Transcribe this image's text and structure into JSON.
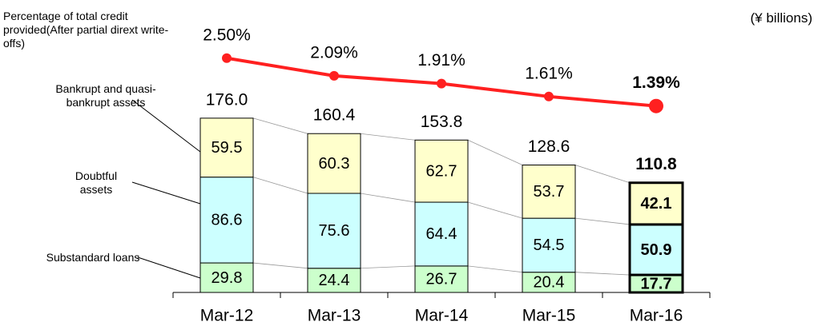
{
  "chart_data": {
    "type": "stacked_bar_line",
    "unit_label": "(¥ billions)",
    "categories": [
      "Mar-12",
      "Mar-13",
      "Mar-14",
      "Mar-15",
      "Mar-16"
    ],
    "series": [
      {
        "name": "Substandard loans",
        "color": "#ccffcc",
        "values": [
          29.8,
          24.4,
          26.7,
          20.4,
          17.7
        ]
      },
      {
        "name": "Doubtful assets",
        "color": "#ccffff",
        "values": [
          86.6,
          75.6,
          64.4,
          54.5,
          50.9
        ]
      },
      {
        "name": "Bankrupt  and quasi-bankrupt assets",
        "color": "#ffffcc",
        "values": [
          59.5,
          60.3,
          62.7,
          53.7,
          42.1
        ]
      },
      {
        "name": "Percentage of total credit provided(After partial dirext write-offs)",
        "color": "#ff2020",
        "axis": "y2",
        "type": "line",
        "values": [
          2.5,
          2.09,
          1.91,
          1.61,
          1.39
        ],
        "value_labels": [
          "2.50%",
          "2.09%",
          "1.91%",
          "1.61%",
          "1.39%"
        ]
      }
    ],
    "totals": [
      176.0,
      160.4,
      153.8,
      128.6,
      110.8
    ],
    "total_labels": [
      "176.0",
      "160.4",
      "153.8",
      "128.6",
      "110.8"
    ],
    "ylim": [
      0,
      250
    ],
    "y2lim": [
      -2.93,
      2.81
    ],
    "highlight_index": 4
  }
}
